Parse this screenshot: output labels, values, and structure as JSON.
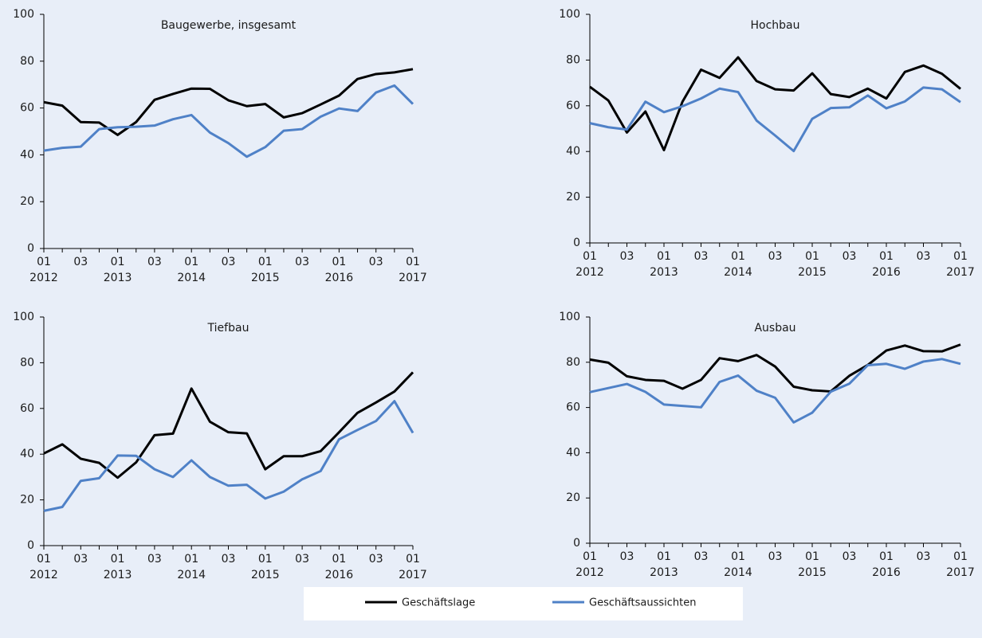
{
  "chart_data": [
    {
      "type": "line",
      "title": "Baugewerbe, insgesamt",
      "categories": [
        "01",
        null,
        "03",
        null,
        "01",
        null,
        "03",
        null,
        "01",
        null,
        "03",
        null,
        "01",
        null,
        "03",
        null,
        "01",
        null,
        "03",
        null,
        "01"
      ],
      "category_groups": [
        "2012",
        null,
        null,
        null,
        "2013",
        null,
        null,
        null,
        "2014",
        null,
        null,
        null,
        "2015",
        null,
        null,
        null,
        "2016",
        null,
        null,
        null,
        "2017"
      ],
      "ylim": [
        0,
        100
      ],
      "yticks": [
        0,
        20,
        40,
        60,
        80,
        100
      ],
      "series": [
        {
          "color": "#000000",
          "values": [
            62.5,
            61,
            54,
            53.8,
            48.5,
            54,
            63.5,
            66,
            68.3,
            68.2,
            63.3,
            60.8,
            61.7,
            56,
            57.8,
            61.5,
            65.3,
            72.4,
            74.5,
            75.2,
            76.6
          ]
        },
        {
          "color": "#4f81c7",
          "values": [
            41.8,
            43,
            43.5,
            51,
            51.8,
            52,
            52.5,
            55.2,
            57,
            49.5,
            45,
            39.2,
            43.3,
            50.3,
            51,
            56.3,
            59.8,
            58.7,
            66.6,
            69.6,
            61.7
          ]
        }
      ]
    },
    {
      "type": "line",
      "title": "Hochbau",
      "categories": [
        "01",
        null,
        "03",
        null,
        "01",
        null,
        "03",
        null,
        "01",
        null,
        "03",
        null,
        "01",
        null,
        "03",
        null,
        "01",
        null,
        "03",
        null,
        "01"
      ],
      "category_groups": [
        "2012",
        null,
        null,
        null,
        "2013",
        null,
        null,
        null,
        "2014",
        null,
        null,
        null,
        "2015",
        null,
        null,
        null,
        "2016",
        null,
        null,
        null,
        "2017"
      ],
      "ylim": [
        0,
        100
      ],
      "yticks": [
        0,
        20,
        40,
        60,
        80,
        100
      ],
      "series": [
        {
          "color": "#000000",
          "values": [
            68.3,
            62.3,
            48.3,
            57.5,
            40.6,
            61.8,
            75.8,
            72.2,
            81.2,
            70.8,
            67.2,
            66.7,
            74.2,
            65.1,
            63.8,
            67.5,
            63.2,
            74.8,
            77.6,
            74,
            67.4
          ]
        },
        {
          "color": "#4f81c7",
          "values": [
            52.4,
            50.6,
            49.6,
            61.8,
            57.2,
            59.8,
            63.2,
            67.5,
            66,
            53.5,
            47,
            40.2,
            54.3,
            59,
            59.3,
            64.5,
            58.9,
            61.9,
            68,
            67.2,
            61.6
          ]
        }
      ]
    },
    {
      "type": "line",
      "title": "Tiefbau",
      "categories": [
        "01",
        null,
        "03",
        null,
        "01",
        null,
        "03",
        null,
        "01",
        null,
        "03",
        null,
        "01",
        null,
        "03",
        null,
        "01",
        null,
        "03",
        null,
        "01"
      ],
      "category_groups": [
        "2012",
        null,
        null,
        null,
        "2013",
        null,
        null,
        null,
        "2014",
        null,
        null,
        null,
        "2015",
        null,
        null,
        null,
        "2016",
        null,
        null,
        null,
        "2017"
      ],
      "ylim": [
        0,
        100
      ],
      "yticks": [
        0,
        20,
        40,
        60,
        80,
        100
      ],
      "series": [
        {
          "color": "#000000",
          "values": [
            40.3,
            44.3,
            38,
            36.2,
            29.7,
            36.4,
            48.3,
            49,
            68.7,
            54.2,
            49.6,
            49.1,
            33.4,
            39.1,
            39.1,
            41.3,
            49.6,
            58.1,
            62.6,
            67.4,
            75.8
          ]
        },
        {
          "color": "#4f81c7",
          "values": [
            15.2,
            16.9,
            28.3,
            29.5,
            39.4,
            39.3,
            33.4,
            30,
            37.3,
            30,
            26.2,
            26.6,
            20.6,
            23.6,
            29,
            32.6,
            46.5,
            50.6,
            54.5,
            63.2,
            49.3
          ]
        }
      ]
    },
    {
      "type": "line",
      "title": "Ausbau",
      "categories": [
        "01",
        null,
        "03",
        null,
        "01",
        null,
        "03",
        null,
        "01",
        null,
        "03",
        null,
        "01",
        null,
        "03",
        null,
        "01",
        null,
        "03",
        null,
        "01"
      ],
      "category_groups": [
        "2012",
        null,
        null,
        null,
        "2013",
        null,
        null,
        null,
        "2014",
        null,
        null,
        null,
        "2015",
        null,
        null,
        null,
        "2016",
        null,
        null,
        null,
        "2017"
      ],
      "ylim": [
        0,
        100
      ],
      "yticks": [
        0,
        20,
        40,
        60,
        80,
        100
      ],
      "series": [
        {
          "color": "#000000",
          "values": [
            81.2,
            79.8,
            73.8,
            72.2,
            71.8,
            68.3,
            72.2,
            81.8,
            80.5,
            83.2,
            78.1,
            69.2,
            67.6,
            67.1,
            74,
            78.8,
            85.2,
            87.4,
            84.9,
            84.8,
            87.8
          ]
        },
        {
          "color": "#4f81c7",
          "values": [
            66.8,
            68.6,
            70.4,
            66.9,
            61.3,
            60.7,
            60.1,
            71.3,
            74.1,
            67.4,
            64.3,
            53.4,
            57.7,
            67,
            70.5,
            78.7,
            79.3,
            77.1,
            80.3,
            81.4,
            79.3
          ]
        }
      ]
    }
  ],
  "legend": [
    {
      "name": "Geschäftslage",
      "color": "#000000"
    },
    {
      "name": "Geschäftsaussichten",
      "color": "#4f81c7"
    }
  ]
}
